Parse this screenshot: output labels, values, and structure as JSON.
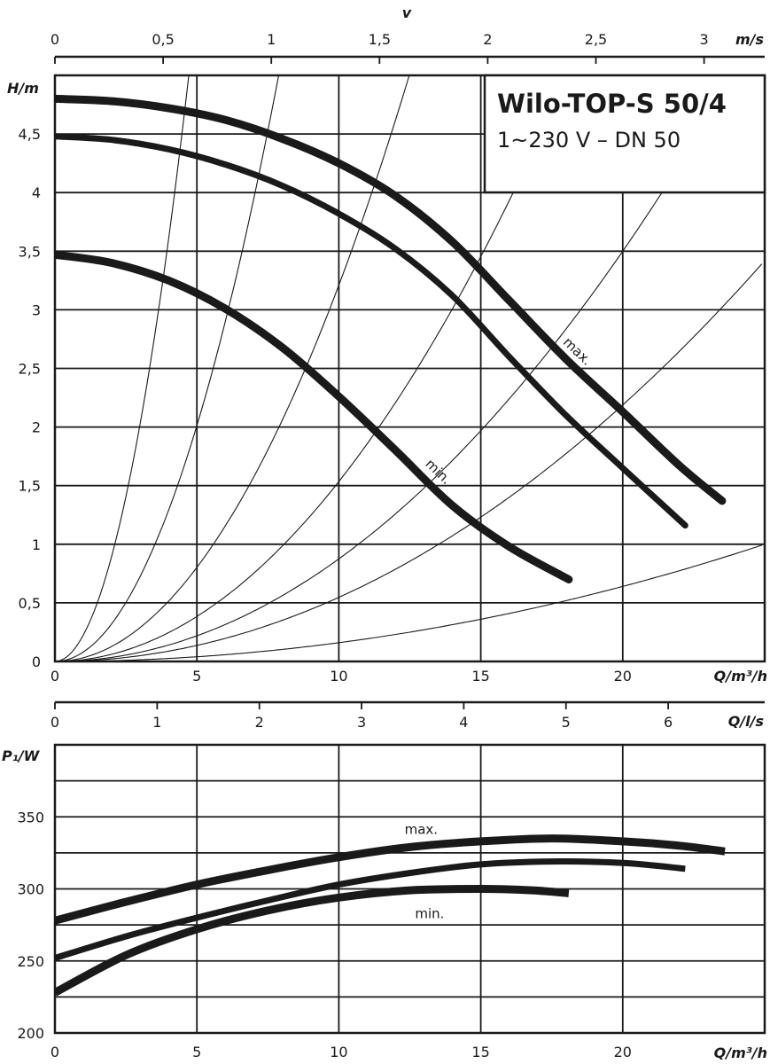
{
  "chart_data": [
    {
      "type": "line",
      "title": "Wilo-TOP-S 50/4",
      "subtitle": "1~230 V – DN 50",
      "xlabel": "Q/m³/h",
      "ylabel": "H/m",
      "top_axis_label": "v",
      "top_axis_unit": "m/s",
      "xlim": [
        0,
        25
      ],
      "ylim": [
        0,
        5
      ],
      "xticks": [
        {
          "value": 0,
          "label": "0"
        },
        {
          "value": 5,
          "label": "5"
        },
        {
          "value": 10,
          "label": "10"
        },
        {
          "value": 15,
          "label": "15"
        },
        {
          "value": 20,
          "label": "20"
        }
      ],
      "yticks": [
        {
          "value": 0,
          "label": "0"
        },
        {
          "value": 0.5,
          "label": "0,5"
        },
        {
          "value": 1,
          "label": "1"
        },
        {
          "value": 1.5,
          "label": "1,5"
        },
        {
          "value": 2,
          "label": "2"
        },
        {
          "value": 2.5,
          "label": "2,5"
        },
        {
          "value": 3,
          "label": "3"
        },
        {
          "value": 3.5,
          "label": "3,5"
        },
        {
          "value": 4,
          "label": "4"
        },
        {
          "value": 4.5,
          "label": "4,5"
        }
      ],
      "top_ticks": [
        {
          "value": 0,
          "label": "0"
        },
        {
          "value": 0.5,
          "label": "0,5"
        },
        {
          "value": 1,
          "label": "1"
        },
        {
          "value": 1.5,
          "label": "1,5"
        },
        {
          "value": 2,
          "label": "2"
        },
        {
          "value": 2.5,
          "label": "2,5"
        },
        {
          "value": 3,
          "label": "3"
        }
      ],
      "top_axis_max": 3.28,
      "grid": true,
      "series": [
        {
          "name": "max.",
          "x": [
            0,
            2,
            4,
            6,
            8,
            10,
            12,
            14,
            16,
            18,
            20,
            22,
            23.5
          ],
          "y": [
            4.8,
            4.78,
            4.72,
            4.62,
            4.46,
            4.25,
            3.97,
            3.58,
            3.08,
            2.58,
            2.13,
            1.67,
            1.37
          ]
        },
        {
          "name": "",
          "x": [
            0,
            2,
            4,
            6,
            8,
            10,
            12,
            14,
            16,
            18,
            20,
            22.2
          ],
          "y": [
            4.48,
            4.45,
            4.37,
            4.24,
            4.06,
            3.82,
            3.52,
            3.12,
            2.6,
            2.1,
            1.65,
            1.16
          ]
        },
        {
          "name": "min.",
          "x": [
            0,
            2,
            4,
            6,
            8,
            10,
            12,
            14,
            16,
            18.1
          ],
          "y": [
            3.47,
            3.4,
            3.25,
            3.01,
            2.68,
            2.26,
            1.8,
            1.33,
            0.98,
            0.7
          ]
        }
      ],
      "system_curves": [
        {
          "k": 0.225
        },
        {
          "k": 0.0805
        },
        {
          "k": 0.0321
        },
        {
          "k": 0.01535
        },
        {
          "k": 0.00875
        },
        {
          "k": 0.00547
        },
        {
          "k": 0.0016
        }
      ]
    },
    {
      "type": "line",
      "xlabel": "Q/m³/h",
      "ylabel": "P₁/W",
      "top_axis_unit": "Q/l/s",
      "xlim": [
        0,
        25
      ],
      "ylim": [
        200,
        400
      ],
      "xticks": [
        {
          "value": 0,
          "label": "0"
        },
        {
          "value": 5,
          "label": "5"
        },
        {
          "value": 10,
          "label": "10"
        },
        {
          "value": 15,
          "label": "15"
        },
        {
          "value": 20,
          "label": "20"
        }
      ],
      "yticks": [
        {
          "value": 200,
          "label": "200"
        },
        {
          "value": 250,
          "label": "250"
        },
        {
          "value": 300,
          "label": "300"
        },
        {
          "value": 350,
          "label": "350"
        }
      ],
      "top_ticks": [
        {
          "value": 0,
          "label": "0"
        },
        {
          "value": 1,
          "label": "1"
        },
        {
          "value": 2,
          "label": "2"
        },
        {
          "value": 3,
          "label": "3"
        },
        {
          "value": 4,
          "label": "4"
        },
        {
          "value": 5,
          "label": "5"
        },
        {
          "value": 6,
          "label": "6"
        }
      ],
      "top_axis_max": 6.944,
      "grid": true,
      "series": [
        {
          "name": "max.",
          "x": [
            0,
            2.5,
            5,
            7.5,
            10,
            12.5,
            15,
            17.5,
            20,
            22,
            23.6
          ],
          "y": [
            278,
            291,
            303,
            313,
            322,
            329,
            333,
            335,
            333,
            330,
            326
          ]
        },
        {
          "name": "",
          "x": [
            0,
            2.5,
            5,
            7.5,
            10,
            12.5,
            15,
            17.5,
            20,
            22.2
          ],
          "y": [
            252,
            267,
            280,
            292,
            303,
            311,
            317,
            319,
            318,
            314
          ]
        },
        {
          "name": "min.",
          "x": [
            0,
            2.5,
            5,
            7.5,
            10,
            12.5,
            15,
            16.8,
            18.1
          ],
          "y": [
            228,
            254,
            272,
            285,
            294,
            299,
            300,
            299,
            297
          ]
        }
      ]
    }
  ]
}
